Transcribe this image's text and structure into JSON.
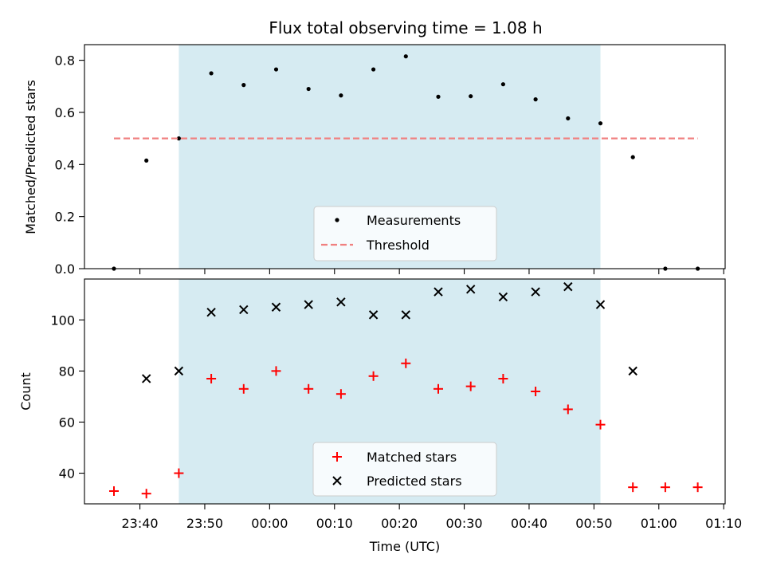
{
  "title": "Flux total observing time = 1.08 h",
  "shade_color": "#add8e6",
  "chart_data": [
    {
      "type": "scatter",
      "ylabel": "Matched/Predicted stars",
      "ylim": [
        0,
        0.86
      ],
      "yticks": [
        0.0,
        0.2,
        0.4,
        0.6,
        0.8
      ],
      "ytick_labels": [
        "0.0",
        "0.2",
        "0.4",
        "0.6",
        "0.8"
      ],
      "shaded_region": [
        "23:46",
        "00:51"
      ],
      "legend": {
        "placement": "lower-center",
        "entries": [
          "Measurements",
          "Threshold"
        ]
      },
      "series": [
        {
          "name": "Measurements",
          "marker": "dot",
          "color": "#000000",
          "x": [
            "23:36",
            "23:41",
            "23:46",
            "23:51",
            "23:56",
            "00:01",
            "00:06",
            "00:11",
            "00:16",
            "00:21",
            "00:26",
            "00:31",
            "00:36",
            "00:41",
            "00:46",
            "00:51",
            "00:56",
            "01:01",
            "01:06"
          ],
          "y": [
            0.0,
            0.415,
            0.5,
            0.75,
            0.705,
            0.765,
            0.69,
            0.665,
            0.765,
            0.815,
            0.66,
            0.662,
            0.708,
            0.65,
            0.577,
            0.558,
            0.428,
            0.0,
            0.0
          ]
        },
        {
          "name": "Threshold",
          "style": "dashed-line",
          "color": "#f08080",
          "x": [
            "23:36",
            "01:06"
          ],
          "y": [
            0.5,
            0.5
          ]
        }
      ]
    },
    {
      "type": "scatter",
      "ylabel": "Count",
      "xlabel": "Time (UTC)",
      "ylim": [
        28,
        116
      ],
      "yticks": [
        40,
        60,
        80,
        100
      ],
      "ytick_labels": [
        "40",
        "60",
        "80",
        "100"
      ],
      "xticks": [
        "23:40",
        "23:50",
        "00:00",
        "00:10",
        "00:20",
        "00:30",
        "00:40",
        "00:50",
        "01:00",
        "01:10"
      ],
      "shaded_region": [
        "23:46",
        "00:51"
      ],
      "legend": {
        "placement": "lower-center",
        "entries": [
          "Matched stars",
          "Predicted stars"
        ]
      },
      "series": [
        {
          "name": "Matched stars",
          "marker": "plus",
          "color": "#ff0000",
          "x": [
            "23:36",
            "23:41",
            "23:46",
            "23:51",
            "23:56",
            "00:01",
            "00:06",
            "00:11",
            "00:16",
            "00:21",
            "00:26",
            "00:31",
            "00:36",
            "00:41",
            "00:46",
            "00:51",
            "00:56",
            "01:01",
            "01:06"
          ],
          "y": [
            33,
            32,
            40,
            77,
            73,
            80,
            73,
            71,
            78,
            83,
            73,
            74,
            77,
            72,
            65,
            59,
            34.5,
            34.5,
            34.5
          ]
        },
        {
          "name": "Predicted stars",
          "marker": "x",
          "color": "#000000",
          "x": [
            "23:41",
            "23:46",
            "23:51",
            "23:56",
            "00:01",
            "00:06",
            "00:11",
            "00:16",
            "00:21",
            "00:26",
            "00:31",
            "00:36",
            "00:41",
            "00:46",
            "00:51",
            "00:56"
          ],
          "y": [
            77,
            80,
            103,
            104,
            105,
            106,
            107,
            102,
            102,
            111,
            112,
            109,
            111,
            113,
            106,
            80
          ]
        }
      ]
    }
  ]
}
